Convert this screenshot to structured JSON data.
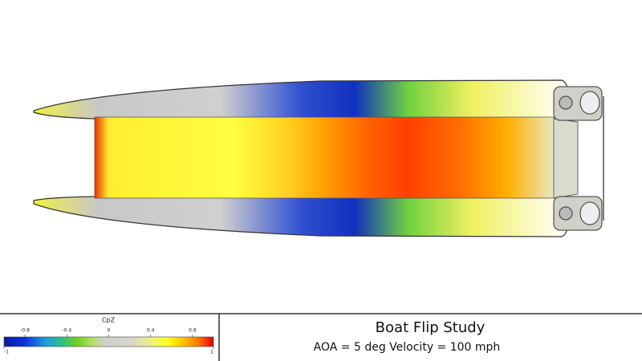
{
  "colorbar": {
    "title": "CpZ",
    "min": -1,
    "max": 1,
    "ticks": [
      -0.8,
      -0.4,
      0,
      0.4,
      0.8
    ]
  },
  "caption": {
    "title": "Boat Flip Study",
    "subtitle": "AOA = 5 deg Velocity = 100 mph"
  }
}
